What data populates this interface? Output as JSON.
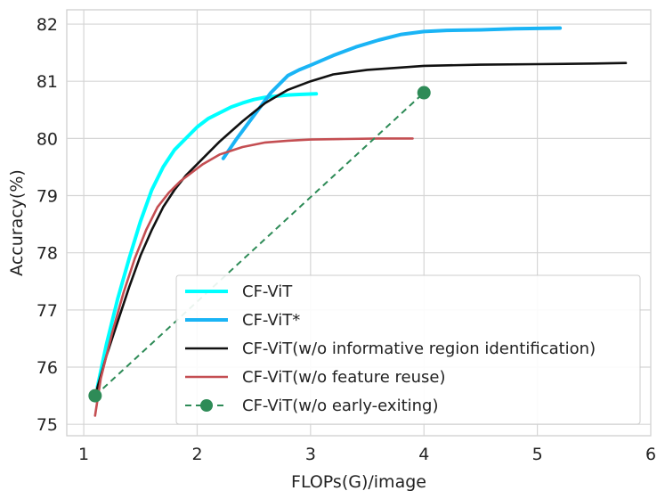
{
  "chart_data": {
    "type": "line",
    "title": "",
    "xlabel": "FLOPs(G)/image",
    "ylabel": "Accuracy(%)",
    "xlim": [
      0.85,
      6.0
    ],
    "ylim": [
      74.8,
      82.25
    ],
    "xticks": [
      1,
      2,
      3,
      4,
      5,
      6
    ],
    "yticks": [
      75,
      76,
      77,
      78,
      79,
      80,
      81,
      82
    ],
    "grid": true,
    "legend_position": "lower-right",
    "series": [
      {
        "name": "CF-ViT",
        "color": "#00ffff",
        "style": "solid",
        "x": [
          1.12,
          1.2,
          1.3,
          1.4,
          1.5,
          1.6,
          1.7,
          1.8,
          1.9,
          2.0,
          2.1,
          2.2,
          2.3,
          2.4,
          2.5,
          2.6,
          2.7,
          2.8,
          2.9,
          3.05
        ],
        "y": [
          75.65,
          76.4,
          77.2,
          77.9,
          78.55,
          79.1,
          79.5,
          79.8,
          80.0,
          80.2,
          80.35,
          80.45,
          80.55,
          80.62,
          80.68,
          80.72,
          80.74,
          80.76,
          80.77,
          80.78
        ]
      },
      {
        "name": "CF-ViT*",
        "color": "#1ab4f5",
        "style": "solid",
        "x": [
          2.23,
          2.35,
          2.5,
          2.65,
          2.8,
          2.9,
          3.0,
          3.2,
          3.4,
          3.6,
          3.8,
          4.0,
          4.2,
          4.5,
          4.8,
          5.2
        ],
        "y": [
          79.65,
          80.0,
          80.4,
          80.8,
          81.1,
          81.2,
          81.28,
          81.45,
          81.6,
          81.72,
          81.82,
          81.87,
          81.89,
          81.9,
          81.92,
          81.93
        ]
      },
      {
        "name": "CF-ViT(w/o informative region identification)",
        "color": "#111111",
        "style": "solid",
        "x": [
          1.1,
          1.2,
          1.3,
          1.4,
          1.5,
          1.6,
          1.7,
          1.8,
          1.9,
          2.0,
          2.2,
          2.4,
          2.6,
          2.8,
          3.0,
          3.2,
          3.5,
          4.0,
          4.5,
          5.0,
          5.5,
          5.78
        ],
        "y": [
          75.5,
          76.2,
          76.8,
          77.4,
          77.95,
          78.4,
          78.8,
          79.1,
          79.35,
          79.55,
          79.95,
          80.3,
          80.62,
          80.85,
          81.0,
          81.12,
          81.2,
          81.27,
          81.29,
          81.3,
          81.31,
          81.32
        ]
      },
      {
        "name": "CF-ViT(w/o feature reuse)",
        "color": "#c44e52",
        "style": "solid",
        "x": [
          1.1,
          1.15,
          1.25,
          1.35,
          1.45,
          1.55,
          1.65,
          1.75,
          1.85,
          1.95,
          2.05,
          2.2,
          2.4,
          2.6,
          2.8,
          3.0,
          3.3,
          3.6,
          3.9
        ],
        "y": [
          75.15,
          75.8,
          76.6,
          77.3,
          77.9,
          78.4,
          78.8,
          79.05,
          79.25,
          79.4,
          79.55,
          79.72,
          79.85,
          79.93,
          79.96,
          79.98,
          79.99,
          80.0,
          80.0
        ]
      },
      {
        "name": "CF-ViT(w/o early-exiting)",
        "color": "#2e8b57",
        "style": "dashed",
        "marker": "circle",
        "x": [
          1.1,
          4.0
        ],
        "y": [
          75.5,
          80.8
        ]
      }
    ]
  }
}
